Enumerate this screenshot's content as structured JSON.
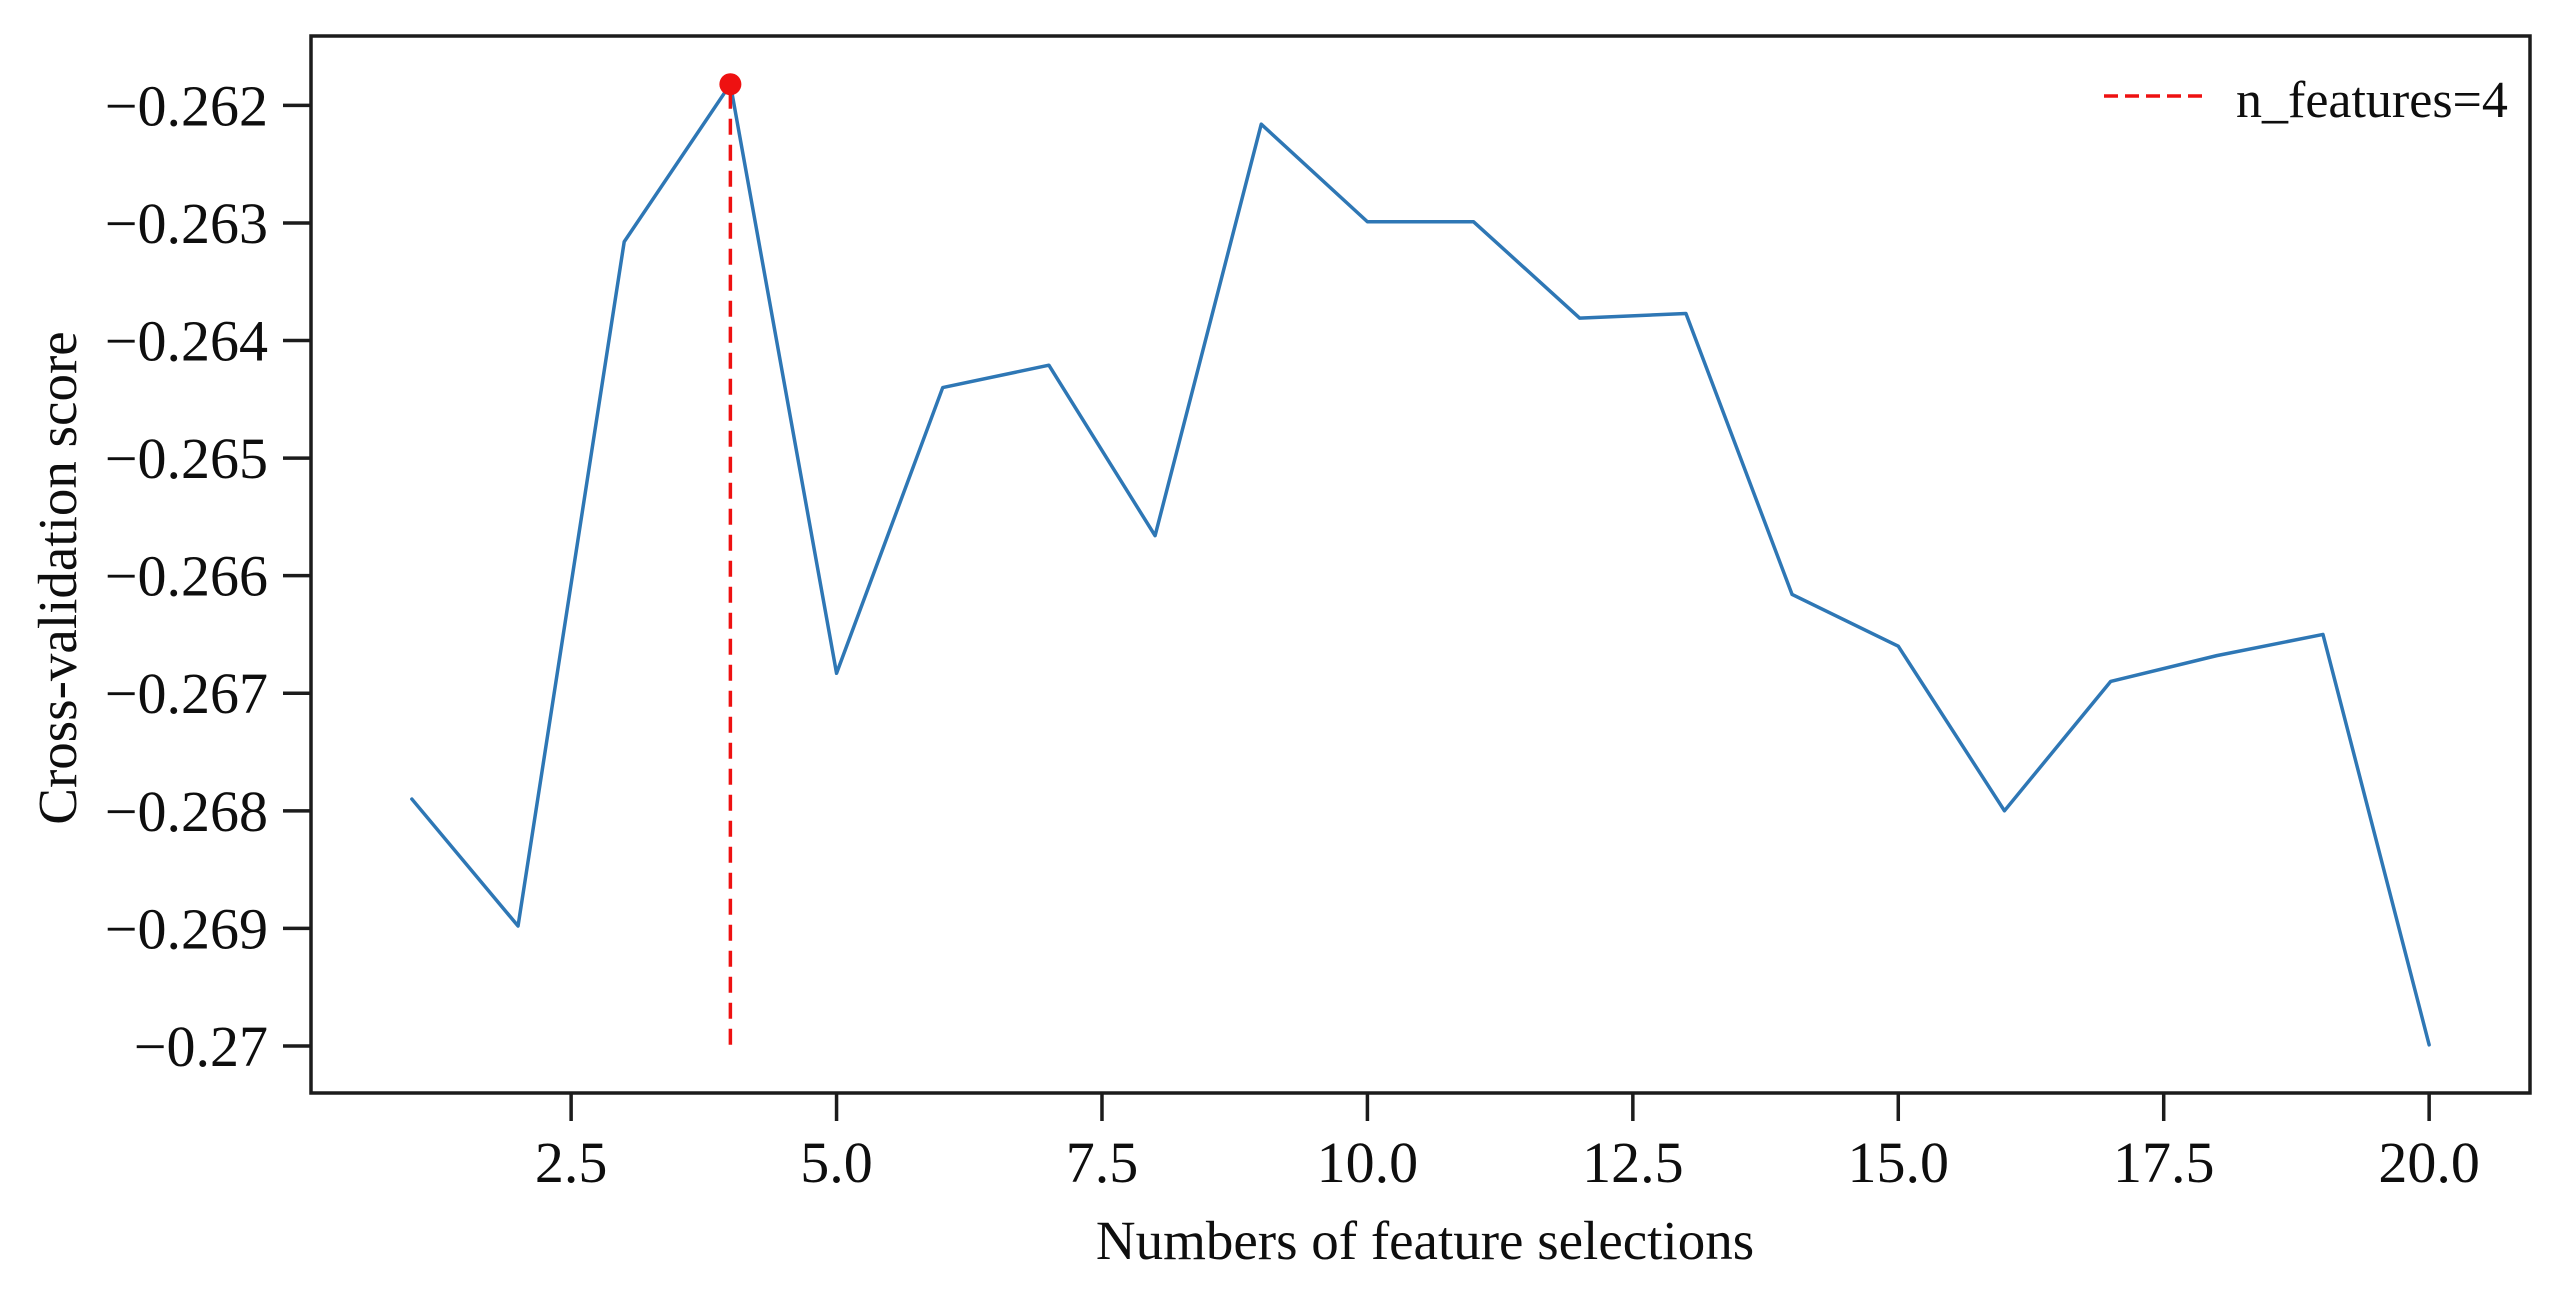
{
  "figure": {
    "background": "#ffffff",
    "axis_color": "#1c1c1c",
    "text_color": "#0e0e0e"
  },
  "chart_data": {
    "type": "line",
    "title": "",
    "xlabel": "Numbers of feature selections",
    "ylabel": "Cross-validation score",
    "x": [
      1,
      2,
      3,
      4,
      5,
      6,
      7,
      8,
      9,
      10,
      11,
      12,
      13,
      14,
      15,
      16,
      17,
      18,
      19,
      20
    ],
    "series": [
      {
        "name": "cross-validation-score",
        "color": "#2e77b5",
        "values": [
          -0.2679,
          -0.26898,
          -0.26316,
          -0.26182,
          -0.26683,
          -0.2644,
          -0.26421,
          -0.26566,
          -0.26216,
          -0.26299,
          -0.26299,
          -0.26381,
          -0.26377,
          -0.26616,
          -0.2666,
          -0.268,
          -0.2669,
          -0.26668,
          -0.2665,
          -0.26999
        ]
      }
    ],
    "best_point": {
      "x": 4,
      "y": -0.26182,
      "color": "#ee1111"
    },
    "vline": {
      "x": 4,
      "y_from": -0.26999,
      "y_to": -0.26182,
      "color": "#ee1111",
      "style": "dashed"
    },
    "legend": {
      "location": "upper right",
      "frame": false,
      "entries": [
        {
          "label": "n_features=4",
          "color": "#ee1111",
          "line_style": "dashed"
        }
      ]
    },
    "xticks": {
      "values": [
        2.5,
        5.0,
        7.5,
        10.0,
        12.5,
        15.0,
        17.5,
        20.0
      ],
      "labels": [
        "2.5",
        "5.0",
        "7.5",
        "10.0",
        "12.5",
        "15.0",
        "17.5",
        "20.0"
      ]
    },
    "yticks": {
      "values": [
        -0.262,
        -0.263,
        -0.264,
        -0.265,
        -0.266,
        -0.267,
        -0.268,
        -0.269,
        -0.27
      ],
      "labels": [
        "−0.262",
        "−0.263",
        "−0.264",
        "−0.265",
        "−0.266",
        "−0.267",
        "−0.268",
        "−0.269",
        "−0.27"
      ]
    },
    "xlim": [
      0.05,
      20.95
    ],
    "ylim": [
      -0.2704,
      -0.26141
    ],
    "grid": false
  }
}
